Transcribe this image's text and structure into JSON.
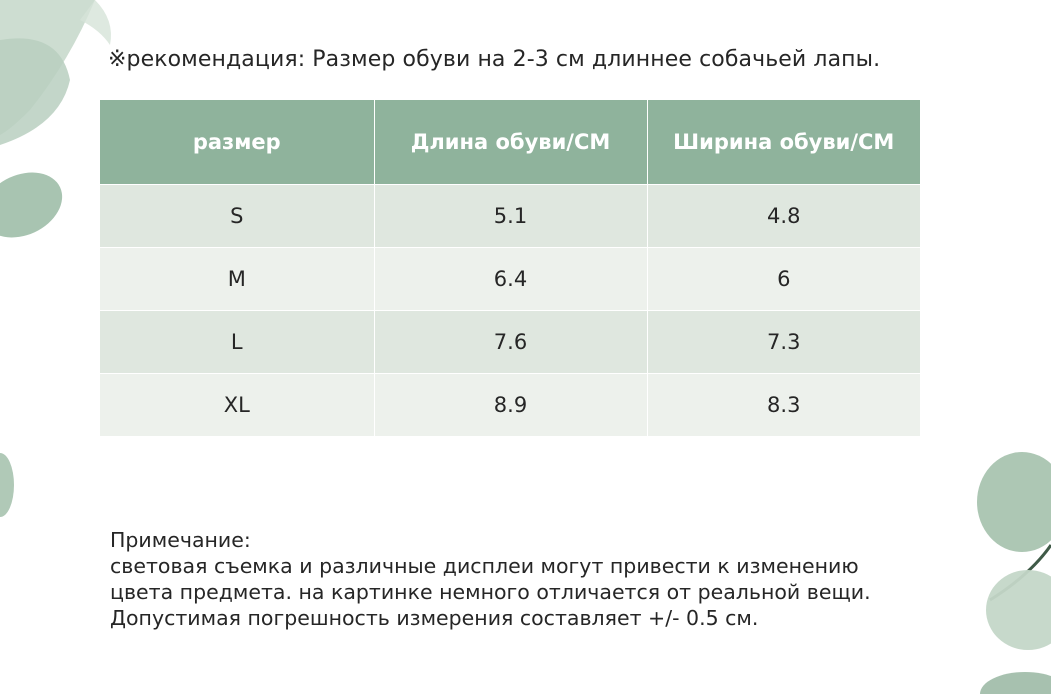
{
  "recommendation": "※рекомендация:   Размер обуви на 2-3 см длиннее собачьей лапы.",
  "table": {
    "headers": [
      "размер",
      "Длина обуви/CM",
      "Ширина обуви/CM"
    ],
    "rows": [
      [
        "S",
        "5.1",
        "4.8"
      ],
      [
        "M",
        "6.4",
        "6"
      ],
      [
        "L",
        "7.6",
        "7.3"
      ],
      [
        "XL",
        "8.9",
        "8.3"
      ]
    ]
  },
  "note": {
    "title": "Примечание:",
    "lines": [
      "световая съемка и различные дисплеи могут привести к изменению",
      "цвета предмета. на картинке немного отличается от реальной вещи.",
      "Допустимая погрешность измерения составляет +/- 0.5 см."
    ]
  },
  "colors": {
    "header_bg": "#8fb39c",
    "row_dark": "#dfe7df",
    "row_light": "#edf1ec",
    "leaf_green": "#a9c5b2"
  }
}
